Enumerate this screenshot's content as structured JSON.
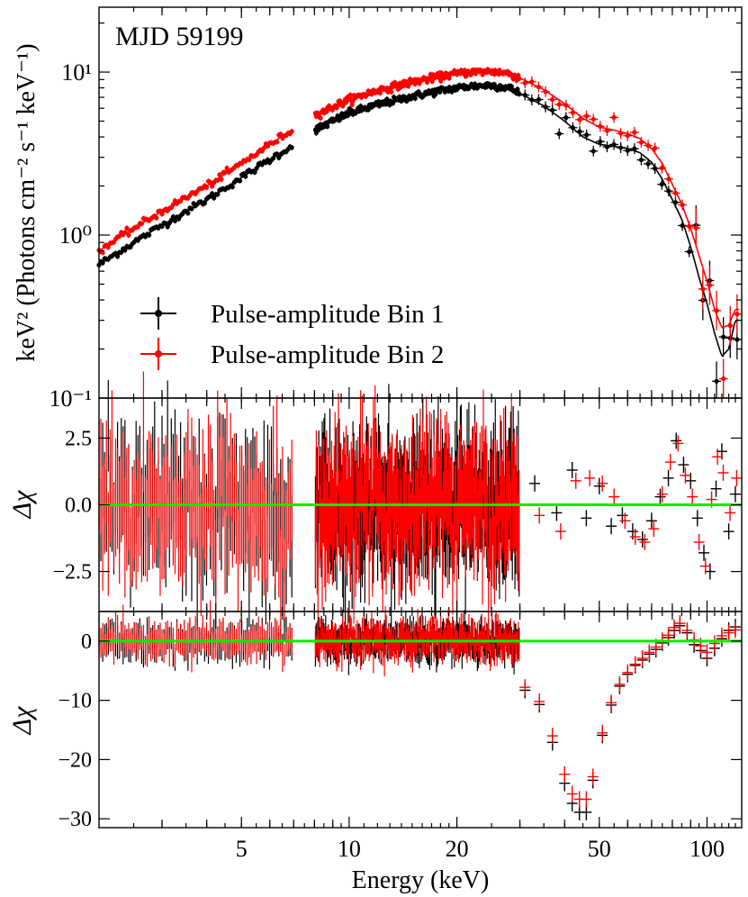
{
  "chart_data": [
    {
      "panel": "spectrum",
      "type": "scatter",
      "annotation": "MJD 59199",
      "ylabel": "keV² (Photons cm⁻² s⁻¹ keV⁻¹)",
      "yscale": "log",
      "ylim": [
        0.1,
        25
      ],
      "xscale": "log",
      "xlim": [
        2.0,
        125
      ],
      "ytick_labels": [
        {
          "v": 10,
          "label": "10¹"
        },
        {
          "v": 1,
          "label": "10⁰"
        },
        {
          "v": 0.1,
          "label": "10⁻¹"
        }
      ],
      "legend": {
        "position": "lower-left",
        "entries": [
          "Pulse-amplitude Bin 1",
          "Pulse-amplitude Bin 2"
        ]
      },
      "series": [
        {
          "name": "Pulse-amplitude Bin 1",
          "color": "#000000",
          "x": [
            2.0,
            2.5,
            3.0,
            3.5,
            4.0,
            5.0,
            6.0,
            6.9,
            8.0,
            9.0,
            10,
            12,
            15,
            18,
            20,
            22,
            25,
            28,
            30,
            35,
            40,
            45,
            50,
            55,
            60,
            65,
            70,
            75,
            80,
            85,
            90,
            95,
            100,
            105,
            110,
            115,
            120
          ],
          "y": [
            0.66,
            0.9,
            1.15,
            1.4,
            1.65,
            2.25,
            2.9,
            3.5,
            4.4,
            5.0,
            5.6,
            6.3,
            7.1,
            7.7,
            8.0,
            8.2,
            8.3,
            8.0,
            7.4,
            6.2,
            5.0,
            4.0,
            3.6,
            3.5,
            3.4,
            3.2,
            2.8,
            2.2,
            1.65,
            1.25,
            0.85,
            0.55,
            0.38,
            0.25,
            0.18,
            0.2,
            0.3
          ]
        },
        {
          "name": "Pulse-amplitude Bin 2",
          "color": "#ff0000",
          "x": [
            2.0,
            2.5,
            3.0,
            3.5,
            4.0,
            5.0,
            6.0,
            6.9,
            8.0,
            9.0,
            10,
            12,
            15,
            18,
            20,
            22,
            25,
            28,
            30,
            35,
            40,
            45,
            50,
            55,
            60,
            65,
            70,
            75,
            80,
            85,
            90,
            95,
            100,
            105,
            110,
            115,
            120
          ],
          "y": [
            0.8,
            1.1,
            1.4,
            1.7,
            2.0,
            2.75,
            3.6,
            4.4,
            5.4,
            6.1,
            6.8,
            7.7,
            8.7,
            9.4,
            9.8,
            10.0,
            10.1,
            9.8,
            9.2,
            7.8,
            6.4,
            5.2,
            4.6,
            4.4,
            4.2,
            3.9,
            3.4,
            2.75,
            2.05,
            1.55,
            1.1,
            0.75,
            0.52,
            0.35,
            0.27,
            0.28,
            0.35
          ]
        }
      ]
    },
    {
      "panel": "residuals-best-fit",
      "type": "scatter",
      "ylabel": "Δχ",
      "ylim": [
        -4.0,
        4.0
      ],
      "yticks": [
        -2.5,
        0.0,
        2.5
      ],
      "ytick_labels": [
        "−2.5",
        "0.0",
        "2.5"
      ],
      "zero_line_color": "#00ee00",
      "series": [
        {
          "name": "Pulse-amplitude Bin 1",
          "color": "#000000",
          "x": [
            33,
            38,
            42,
            46,
            50,
            54,
            58,
            62,
            66,
            70,
            74,
            78,
            82,
            86,
            90,
            94,
            98,
            102,
            106,
            110,
            115,
            120
          ],
          "y": [
            0.8,
            -0.3,
            1.3,
            -0.5,
            0.7,
            -0.8,
            -0.4,
            -1.0,
            -1.3,
            -0.6,
            0.3,
            1.0,
            2.4,
            1.5,
            0.9,
            -0.5,
            -1.8,
            -2.5,
            0.6,
            2.0,
            -1.0,
            0.4
          ]
        },
        {
          "name": "Pulse-amplitude Bin 2",
          "color": "#ff0000",
          "x": [
            34,
            39,
            43,
            47,
            51,
            55,
            59,
            63,
            67,
            71,
            75,
            79,
            83,
            87,
            91,
            95,
            99,
            103,
            107,
            111,
            116,
            121
          ],
          "y": [
            -0.4,
            -1.0,
            0.9,
            1.0,
            0.8,
            0.3,
            -0.6,
            -1.2,
            -1.4,
            -0.9,
            0.4,
            1.6,
            2.3,
            1.1,
            0.3,
            -1.4,
            -2.3,
            0.2,
            1.8,
            1.2,
            -0.3,
            1.0
          ]
        }
      ]
    },
    {
      "panel": "residuals-no-cyclotron-line",
      "type": "scatter",
      "ylabel": "Δχ",
      "xlabel": "Energy (keV)",
      "ylim": [
        -31.5,
        5
      ],
      "yticks": [
        -30,
        -20,
        -10,
        0
      ],
      "ytick_labels": [
        "−30",
        "−20",
        "−10",
        "0"
      ],
      "xtick_labels": [
        {
          "v": 5,
          "label": "5"
        },
        {
          "v": 10,
          "label": "10"
        },
        {
          "v": 20,
          "label": "20"
        },
        {
          "v": 50,
          "label": "50"
        },
        {
          "v": 100,
          "label": "100"
        }
      ],
      "zero_line_color": "#00ee00",
      "series": [
        {
          "name": "Pulse-amplitude Bin 1",
          "color": "#000000",
          "x": [
            31,
            34,
            37,
            40,
            42,
            44,
            46,
            48,
            51,
            54,
            57,
            60,
            63,
            66,
            69,
            72,
            75,
            78,
            81,
            84,
            88,
            92,
            96,
            100,
            105,
            110,
            115,
            120
          ],
          "y": [
            -8.3,
            -10.7,
            -17.1,
            -24.0,
            -27.4,
            -28.9,
            -28.9,
            -23.5,
            -15.9,
            -10.8,
            -7.6,
            -5.6,
            -4.1,
            -3.2,
            -2.2,
            -1.4,
            -0.3,
            0.6,
            1.8,
            2.6,
            1.4,
            -0.6,
            -1.6,
            -2.9,
            -1.2,
            0.4,
            1.8,
            2.4
          ]
        },
        {
          "name": "Pulse-amplitude Bin 2",
          "color": "#ff0000",
          "x": [
            31,
            34,
            37,
            40,
            42,
            44,
            46,
            48,
            51,
            54,
            57,
            60,
            63,
            66,
            69,
            72,
            75,
            78,
            81,
            84,
            88,
            92,
            96,
            100,
            105,
            110,
            115,
            120
          ],
          "y": [
            -7.8,
            -10.2,
            -16.0,
            -22.5,
            -25.8,
            -26.7,
            -26.7,
            -22.9,
            -15.5,
            -10.4,
            -7.3,
            -5.3,
            -3.9,
            -2.9,
            -1.9,
            -1.0,
            0.1,
            1.0,
            2.3,
            3.0,
            1.8,
            0.2,
            -0.8,
            -1.9,
            -0.4,
            0.9,
            1.4,
            1.9
          ]
        }
      ]
    }
  ]
}
